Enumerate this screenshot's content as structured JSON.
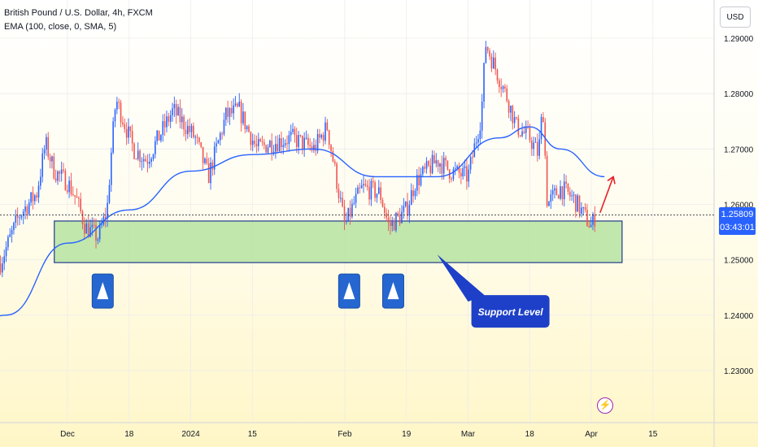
{
  "header": {
    "symbol_line": "British Pound / U.S. Dollar, 4h, FXCM",
    "indicator_line": "EMA (100, close, 0, SMA, 5)"
  },
  "currency_button": "USD",
  "price_tag": {
    "price": "1.25809",
    "countdown": "03:43:01"
  },
  "annotation": {
    "support_label": "Support Level"
  },
  "icons": {
    "flash": "lightning-icon",
    "arrow": "up-arrow-icon"
  },
  "colors": {
    "up_candle": "#2962ff",
    "down_candle": "#ef5350",
    "ema": "#2962ff",
    "support_zone": "#b6e3a2",
    "support_border": "#1e3a8a",
    "callout": "#1e40c8",
    "target_arrow": "#e8202a",
    "price_tag": "#2962ff"
  },
  "chart_data": {
    "type": "candlestick",
    "title": "British Pound / U.S. Dollar, 4h, FXCM",
    "xlabel": "",
    "ylabel": "",
    "x_tick_labels": [
      "Dec",
      "18",
      "2024",
      "15",
      "Feb",
      "19",
      "Mar",
      "18",
      "Apr",
      "15"
    ],
    "y_tick_labels": [
      "1.29000",
      "1.28000",
      "1.27000",
      "1.26000",
      "1.25000",
      "1.24000",
      "1.23000"
    ],
    "ylim": [
      1.222,
      1.295
    ],
    "current_price": 1.25809,
    "close_path": [
      {
        "x": "2023-11-10",
        "y": 1.238
      },
      {
        "x": "2023-11-14",
        "y": 1.244
      },
      {
        "x": "2023-11-17",
        "y": 1.246
      },
      {
        "x": "2023-11-20",
        "y": 1.252
      },
      {
        "x": "2023-11-23",
        "y": 1.258
      },
      {
        "x": "2023-11-27",
        "y": 1.262
      },
      {
        "x": "2023-11-29",
        "y": 1.271
      },
      {
        "x": "2023-12-01",
        "y": 1.266
      },
      {
        "x": "2023-12-04",
        "y": 1.264
      },
      {
        "x": "2023-12-06",
        "y": 1.261
      },
      {
        "x": "2023-12-08",
        "y": 1.256
      },
      {
        "x": "2023-12-11",
        "y": 1.254
      },
      {
        "x": "2023-12-13",
        "y": 1.259
      },
      {
        "x": "2023-12-14",
        "y": 1.27
      },
      {
        "x": "2023-12-15",
        "y": 1.279
      },
      {
        "x": "2023-12-19",
        "y": 1.27
      },
      {
        "x": "2023-12-22",
        "y": 1.268
      },
      {
        "x": "2023-12-28",
        "y": 1.277
      },
      {
        "x": "2024-01-02",
        "y": 1.272
      },
      {
        "x": "2024-01-05",
        "y": 1.265
      },
      {
        "x": "2024-01-09",
        "y": 1.276
      },
      {
        "x": "2024-01-12",
        "y": 1.277
      },
      {
        "x": "2024-01-16",
        "y": 1.27
      },
      {
        "x": "2024-01-19",
        "y": 1.271
      },
      {
        "x": "2024-01-24",
        "y": 1.272
      },
      {
        "x": "2024-01-29",
        "y": 1.27
      },
      {
        "x": "2024-02-01",
        "y": 1.274
      },
      {
        "x": "2024-02-05",
        "y": 1.256
      },
      {
        "x": "2024-02-07",
        "y": 1.26
      },
      {
        "x": "2024-02-09",
        "y": 1.263
      },
      {
        "x": "2024-02-13",
        "y": 1.262
      },
      {
        "x": "2024-02-15",
        "y": 1.256
      },
      {
        "x": "2024-02-19",
        "y": 1.259
      },
      {
        "x": "2024-02-21",
        "y": 1.264
      },
      {
        "x": "2024-02-26",
        "y": 1.268
      },
      {
        "x": "2024-02-29",
        "y": 1.266
      },
      {
        "x": "2024-03-04",
        "y": 1.265
      },
      {
        "x": "2024-03-07",
        "y": 1.276
      },
      {
        "x": "2024-03-08",
        "y": 1.289
      },
      {
        "x": "2024-03-11",
        "y": 1.283
      },
      {
        "x": "2024-03-13",
        "y": 1.279
      },
      {
        "x": "2024-03-15",
        "y": 1.274
      },
      {
        "x": "2024-03-18",
        "y": 1.272
      },
      {
        "x": "2024-03-20",
        "y": 1.269
      },
      {
        "x": "2024-03-21",
        "y": 1.278
      },
      {
        "x": "2024-03-22",
        "y": 1.26
      },
      {
        "x": "2024-03-25",
        "y": 1.263
      },
      {
        "x": "2024-03-28",
        "y": 1.261
      },
      {
        "x": "2024-04-01",
        "y": 1.256
      },
      {
        "x": "2024-04-02",
        "y": 1.2581
      }
    ],
    "series": [
      {
        "name": "EMA (100, close, 0, SMA, 5)",
        "type": "line",
        "points": [
          {
            "x": "2023-11-01",
            "y": 1.226
          },
          {
            "x": "2023-11-20",
            "y": 1.24
          },
          {
            "x": "2023-12-04",
            "y": 1.253
          },
          {
            "x": "2023-12-18",
            "y": 1.259
          },
          {
            "x": "2024-01-01",
            "y": 1.266
          },
          {
            "x": "2024-01-15",
            "y": 1.269
          },
          {
            "x": "2024-01-29",
            "y": 1.27
          },
          {
            "x": "2024-02-12",
            "y": 1.265
          },
          {
            "x": "2024-02-26",
            "y": 1.265
          },
          {
            "x": "2024-03-11",
            "y": 1.272
          },
          {
            "x": "2024-03-18",
            "y": 1.274
          },
          {
            "x": "2024-03-25",
            "y": 1.27
          },
          {
            "x": "2024-04-04",
            "y": 1.265
          }
        ]
      }
    ],
    "annotations": {
      "support_zone": {
        "x_start": "2023-12-01",
        "x_end": "2024-04-08",
        "y_low": 1.2495,
        "y_high": 1.257,
        "label": "Support Level"
      },
      "up_markers_x": [
        "2023-12-12",
        "2024-02-06",
        "2024-02-16"
      ],
      "target_arrow": {
        "x_start": "2024-04-03",
        "y_start": 1.2585,
        "x_end": "2024-04-06",
        "y_end": 1.265
      }
    }
  }
}
